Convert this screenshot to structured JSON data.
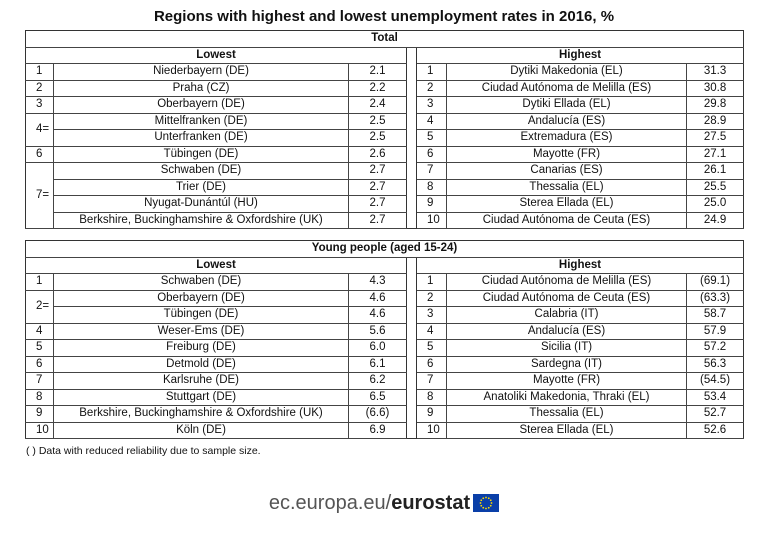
{
  "title": "Regions with highest and lowest unemployment rates in 2016, %",
  "total": {
    "header": "Total",
    "lowest_label": "Lowest",
    "highest_label": "Highest",
    "lowest": [
      {
        "rank": "1",
        "name": "Niederbayern (DE)",
        "value": "2.1"
      },
      {
        "rank": "2",
        "name": "Praha (CZ)",
        "value": "2.2"
      },
      {
        "rank": "3",
        "name": "Oberbayern (DE)",
        "value": "2.4"
      },
      {
        "rank": "4=",
        "name": "Mittelfranken (DE)",
        "value": "2.5"
      },
      {
        "rank": "",
        "name": "Unterfranken (DE)",
        "value": "2.5"
      },
      {
        "rank": "6",
        "name": "Tübingen (DE)",
        "value": "2.6"
      },
      {
        "rank": "7=",
        "name": "Schwaben (DE)",
        "value": "2.7"
      },
      {
        "rank": "",
        "name": "Trier (DE)",
        "value": "2.7"
      },
      {
        "rank": "",
        "name": "Nyugat-Dunántúl (HU)",
        "value": "2.7"
      },
      {
        "rank": "",
        "name": "Berkshire, Buckinghamshire & Oxfordshire (UK)",
        "value": "2.7"
      }
    ],
    "highest": [
      {
        "rank": "1",
        "name": "Dytiki Makedonia (EL)",
        "value": "31.3"
      },
      {
        "rank": "2",
        "name": "Ciudad Autónoma de Melilla (ES)",
        "value": "30.8"
      },
      {
        "rank": "3",
        "name": "Dytiki Ellada (EL)",
        "value": "29.8"
      },
      {
        "rank": "4",
        "name": "Andalucía (ES)",
        "value": "28.9"
      },
      {
        "rank": "5",
        "name": "Extremadura (ES)",
        "value": "27.5"
      },
      {
        "rank": "6",
        "name": "Mayotte (FR)",
        "value": "27.1"
      },
      {
        "rank": "7",
        "name": "Canarias (ES)",
        "value": "26.1"
      },
      {
        "rank": "8",
        "name": "Thessalia (EL)",
        "value": "25.5"
      },
      {
        "rank": "9",
        "name": "Sterea Ellada (EL)",
        "value": "25.0"
      },
      {
        "rank": "10",
        "name": "Ciudad Autónoma de Ceuta (ES)",
        "value": "24.9"
      }
    ]
  },
  "young": {
    "header": "Young people (aged 15-24)",
    "lowest_label": "Lowest",
    "highest_label": "Highest",
    "lowest": [
      {
        "rank": "1",
        "name": "Schwaben (DE)",
        "value": "4.3"
      },
      {
        "rank": "2=",
        "name": "Oberbayern (DE)",
        "value": "4.6"
      },
      {
        "rank": "",
        "name": "Tübingen (DE)",
        "value": "4.6"
      },
      {
        "rank": "4",
        "name": "Weser-Ems (DE)",
        "value": "5.6"
      },
      {
        "rank": "5",
        "name": "Freiburg (DE)",
        "value": "6.0"
      },
      {
        "rank": "6",
        "name": "Detmold (DE)",
        "value": "6.1"
      },
      {
        "rank": "7",
        "name": "Karlsruhe (DE)",
        "value": "6.2"
      },
      {
        "rank": "8",
        "name": "Stuttgart (DE)",
        "value": "6.5"
      },
      {
        "rank": "9",
        "name": "Berkshire, Buckinghamshire & Oxfordshire (UK)",
        "value": "(6.6)"
      },
      {
        "rank": "10",
        "name": "Köln (DE)",
        "value": "6.9"
      }
    ],
    "highest": [
      {
        "rank": "1",
        "name": "Ciudad Autónoma de Melilla (ES)",
        "value": "(69.1)"
      },
      {
        "rank": "2",
        "name": "Ciudad Autónoma de Ceuta (ES)",
        "value": "(63.3)"
      },
      {
        "rank": "3",
        "name": "Calabria (IT)",
        "value": "58.7"
      },
      {
        "rank": "4",
        "name": "Andalucía (ES)",
        "value": "57.9"
      },
      {
        "rank": "5",
        "name": "Sicilia (IT)",
        "value": "57.2"
      },
      {
        "rank": "6",
        "name": "Sardegna (IT)",
        "value": "56.3"
      },
      {
        "rank": "7",
        "name": "Mayotte (FR)",
        "value": "(54.5)"
      },
      {
        "rank": "8",
        "name": "Anatoliki Makedonia, Thraki (EL)",
        "value": "53.4"
      },
      {
        "rank": "9",
        "name": "Thessalia (EL)",
        "value": "52.7"
      },
      {
        "rank": "10",
        "name": "Sterea Ellada (EL)",
        "value": "52.6"
      }
    ]
  },
  "note": "( ) Data with reduced reliability due to sample size.",
  "footer": {
    "domain": "ec.europa.eu/",
    "brand": "eurostat"
  },
  "colors": {
    "flag_blue": "#0a3fa8",
    "flag_star": "#ffdd00"
  },
  "icons": {
    "flag": "eu-flag-icon"
  }
}
